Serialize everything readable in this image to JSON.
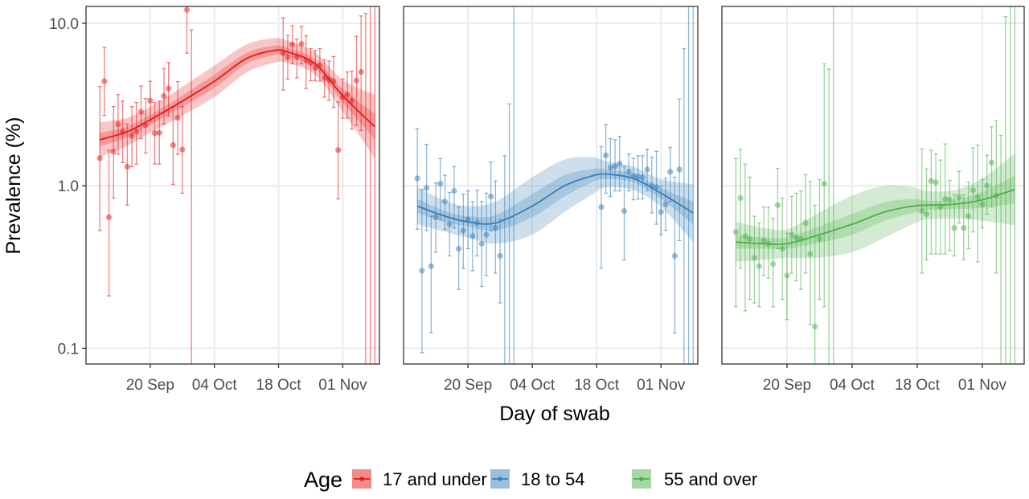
{
  "chart_data": {
    "type": "line",
    "facets": 3,
    "xlabel": "Day of swab",
    "ylabel": "Prevalence (%)",
    "yscale": "log10",
    "ylim": [
      0.08,
      12.7
    ],
    "yticks": [
      {
        "value": 0.1,
        "label": "0.1"
      },
      {
        "value": 1,
        "label": "1.0"
      },
      {
        "value": 10,
        "label": "10.0"
      }
    ],
    "xticks": [
      {
        "date": "09-20",
        "label": "20 Sep"
      },
      {
        "date": "10-04",
        "label": "04 Oct"
      },
      {
        "date": "10-18",
        "label": "18 Oct"
      },
      {
        "date": "11-01",
        "label": "01 Nov"
      }
    ],
    "grid": true,
    "legend": {
      "title": "Age",
      "position": "bottom"
    },
    "series": [
      {
        "name": "17 and under",
        "color": "#E41A1C",
        "xlim": [
          "09-06",
          "11-09"
        ],
        "dates": [
          "09-09",
          "09-10",
          "09-11",
          "09-12",
          "09-13",
          "09-14",
          "09-15",
          "09-16",
          "09-17",
          "09-18",
          "09-19",
          "09-20",
          "09-21",
          "09-22",
          "09-23",
          "09-24",
          "09-25",
          "09-26",
          "09-27",
          "09-28",
          "09-29",
          "10-19",
          "10-20",
          "10-21",
          "10-22",
          "10-23",
          "10-24",
          "10-25",
          "10-26",
          "10-27",
          "10-28",
          "10-29",
          "10-30",
          "10-31",
          "11-01",
          "11-02",
          "11-03",
          "11-04",
          "11-05",
          "11-06",
          "11-07",
          "11-08"
        ],
        "values": [
          1.48,
          4.4,
          0.64,
          1.62,
          2.39,
          2.15,
          1.31,
          2.03,
          2.15,
          2.85,
          2.36,
          3.34,
          2.11,
          2.12,
          3.57,
          3.97,
          1.78,
          2.62,
          1.67,
          12.1,
          0,
          6.55,
          6.18,
          7.41,
          6.18,
          7.47,
          5.91,
          5.69,
          5.32,
          5.52,
          4.61,
          4.49,
          4.4,
          1.66,
          3.51,
          3.64,
          3.35,
          4.45,
          5.02,
          0,
          0,
          0
        ],
        "lower": [
          0.53,
          2.71,
          0.21,
          0.84,
          1.56,
          1.39,
          0.76,
          1.31,
          1.36,
          1.95,
          1.59,
          2.5,
          1.36,
          1.36,
          2.4,
          2.69,
          1.02,
          1.56,
          0.9,
          6.55,
          0,
          3.88,
          4.54,
          5.63,
          4.61,
          5.63,
          3.97,
          4.43,
          4.43,
          4.4,
          3.51,
          3.35,
          3.04,
          0.83,
          2.61,
          2.61,
          2.23,
          2.36,
          2.19,
          0,
          0,
          0
        ],
        "upper": [
          4.08,
          7.1,
          1.65,
          3.07,
          3.64,
          3.32,
          2.4,
          3.07,
          3.25,
          4.11,
          3.44,
          4.4,
          3.25,
          3.32,
          5.26,
          5.74,
          3.07,
          4.37,
          3.07,
          20,
          9.1,
          10.8,
          8.43,
          9.67,
          8.0,
          9.55,
          8.37,
          6.98,
          6.8,
          6.98,
          5.96,
          5.85,
          6.24,
          3.28,
          4.54,
          5.02,
          5.08,
          8.31,
          11.1,
          11.5,
          20,
          20
        ],
        "fit": {
          "dates": [
            "09-09",
            "09-15",
            "09-20",
            "09-26",
            "10-04",
            "10-11",
            "10-17",
            "10-20",
            "10-26",
            "11-01",
            "11-08"
          ],
          "estimate": [
            1.92,
            2.15,
            2.55,
            3.19,
            4.4,
            6.07,
            6.8,
            6.66,
            5.63,
            3.58,
            2.31
          ],
          "ci95_lower": [
            1.5,
            1.76,
            2.13,
            2.61,
            3.52,
            4.98,
            5.71,
            5.69,
            4.81,
            2.86,
            1.47
          ],
          "ci95_upper": [
            2.46,
            2.62,
            3.06,
            3.89,
            5.5,
            7.41,
            8.09,
            7.79,
            6.59,
            4.48,
            3.63
          ],
          "ci50_lower": [
            1.75,
            1.99,
            2.38,
            2.95,
            4.0,
            5.62,
            6.36,
            6.28,
            5.31,
            3.25,
            1.93
          ],
          "ci50_upper": [
            2.11,
            2.32,
            2.73,
            3.45,
            4.84,
            6.56,
            7.28,
            7.06,
            5.97,
            3.94,
            2.77
          ]
        }
      },
      {
        "name": "18 to 54",
        "color": "#377EB8",
        "xlim": [
          "09-06",
          "11-09"
        ],
        "dates": [
          "09-09",
          "09-10",
          "09-11",
          "09-12",
          "09-13",
          "09-14",
          "09-15",
          "09-16",
          "09-17",
          "09-18",
          "09-19",
          "09-20",
          "09-21",
          "09-22",
          "09-23",
          "09-24",
          "09-25",
          "09-26",
          "09-27",
          "09-28",
          "09-29",
          "09-30",
          "10-19",
          "10-20",
          "10-21",
          "10-22",
          "10-23",
          "10-24",
          "10-25",
          "10-26",
          "10-27",
          "10-28",
          "10-29",
          "10-30",
          "10-31",
          "11-01",
          "11-02",
          "11-03",
          "11-04",
          "11-05",
          "11-06",
          "11-07",
          "11-08"
        ],
        "values": [
          1.11,
          0.3,
          0.97,
          0.32,
          0.64,
          1.03,
          0.8,
          0.58,
          0.93,
          0.41,
          0.53,
          0.62,
          0.49,
          0.59,
          0.44,
          0.5,
          0.86,
          0.55,
          0.37,
          0,
          0,
          0,
          0.74,
          1.54,
          1.29,
          1.32,
          1.37,
          0.7,
          1.22,
          1.15,
          1.14,
          1.13,
          1.26,
          1.0,
          0.98,
          0.69,
          0.77,
          1.22,
          0.37,
          1.26,
          0,
          0,
          0
        ],
        "lower": [
          0.54,
          0.094,
          0.53,
          0.125,
          0.39,
          0.62,
          0.54,
          0.37,
          0.55,
          0.23,
          0.31,
          0.41,
          0.3,
          0.37,
          0.24,
          0.28,
          0.53,
          0.29,
          0.19,
          0,
          0,
          0,
          0.31,
          0.9,
          0.86,
          0.93,
          0.93,
          0.35,
          0.93,
          0.82,
          0.83,
          0.83,
          0.93,
          0.68,
          0.58,
          0.5,
          0.53,
          0.8,
          0.124,
          0.46,
          0,
          0,
          0
        ],
        "upper": [
          2.25,
          0.95,
          1.8,
          0.65,
          1.04,
          1.47,
          1.16,
          0.91,
          1.31,
          0.74,
          0.89,
          0.93,
          0.8,
          0.94,
          0.8,
          0.9,
          1.4,
          1.07,
          0.62,
          1.53,
          3.19,
          20,
          1.74,
          2.39,
          1.95,
          1.92,
          2.01,
          1.31,
          1.57,
          1.48,
          1.53,
          1.53,
          1.68,
          1.5,
          1.63,
          1.0,
          1.11,
          1.72,
          1.13,
          3.42,
          6.98,
          20,
          20
        ],
        "fit": {
          "dates": [
            "09-09",
            "09-15",
            "09-20",
            "09-26",
            "10-04",
            "10-11",
            "10-17",
            "10-20",
            "10-26",
            "11-01",
            "11-08"
          ],
          "estimate": [
            0.75,
            0.65,
            0.6,
            0.59,
            0.75,
            1.0,
            1.15,
            1.18,
            1.11,
            0.9,
            0.68
          ],
          "ci95_lower": [
            0.58,
            0.52,
            0.48,
            0.44,
            0.5,
            0.69,
            0.88,
            0.98,
            0.94,
            0.74,
            0.45
          ],
          "ci95_upper": [
            0.98,
            0.81,
            0.75,
            0.8,
            1.13,
            1.45,
            1.5,
            1.42,
            1.31,
            1.1,
            1.02
          ],
          "ci50_lower": [
            0.68,
            0.6,
            0.56,
            0.53,
            0.64,
            0.86,
            1.05,
            1.1,
            1.05,
            0.83,
            0.58
          ],
          "ci50_upper": [
            0.83,
            0.7,
            0.65,
            0.66,
            0.89,
            1.16,
            1.27,
            1.26,
            1.18,
            0.97,
            0.8
          ]
        }
      },
      {
        "name": "55 and over",
        "color": "#4DAF4A",
        "xlim": [
          "09-06",
          "11-10"
        ],
        "dates": [
          "09-09",
          "09-10",
          "09-11",
          "09-12",
          "09-13",
          "09-14",
          "09-15",
          "09-16",
          "09-17",
          "09-18",
          "09-19",
          "09-20",
          "09-21",
          "09-22",
          "09-23",
          "09-24",
          "09-25",
          "09-26",
          "09-27",
          "09-28",
          "09-29",
          "09-30",
          "10-19",
          "10-20",
          "10-21",
          "10-22",
          "10-23",
          "10-24",
          "10-25",
          "10-26",
          "10-27",
          "10-28",
          "10-29",
          "10-30",
          "10-31",
          "11-01",
          "11-02",
          "11-03",
          "11-04",
          "11-05",
          "11-06",
          "11-07",
          "11-08"
        ],
        "values": [
          0.52,
          0.84,
          0.49,
          0.47,
          0.36,
          0.32,
          0.46,
          0.44,
          0.33,
          0.76,
          0.41,
          0.28,
          0.5,
          0.48,
          0.47,
          0.59,
          0.38,
          0.136,
          0.47,
          1.03,
          0,
          0,
          0.7,
          0.67,
          1.07,
          1.05,
          0.74,
          0.83,
          0.82,
          0.55,
          0.85,
          0.55,
          0.65,
          0.94,
          0.85,
          0.77,
          1.0,
          1.39,
          0.87,
          0,
          0,
          0,
          0
        ],
        "lower": [
          0.18,
          0.31,
          0.17,
          0.2,
          0.19,
          0.18,
          0.28,
          0.27,
          0.18,
          0.41,
          0.2,
          0.15,
          0.29,
          0.26,
          0.23,
          0.29,
          0.14,
          0,
          0.2,
          0.18,
          0,
          0,
          0.29,
          0.35,
          0.38,
          0.38,
          0.38,
          0.38,
          0.4,
          0.37,
          0.59,
          0.35,
          0.41,
          0.52,
          0.34,
          0.55,
          0.67,
          0.74,
          0.29,
          0,
          0,
          0,
          0
        ],
        "upper": [
          1.47,
          1.68,
          1.36,
          1.13,
          0.65,
          0.59,
          0.74,
          0.74,
          0.63,
          1.28,
          0.84,
          0.51,
          0.86,
          0.9,
          0.93,
          1.17,
          1.06,
          0.76,
          1.09,
          5.63,
          5.22,
          20,
          1.69,
          1.27,
          1.66,
          1.57,
          1.44,
          1.81,
          1.08,
          0.88,
          1.23,
          0.88,
          1.05,
          1.71,
          1.78,
          1.09,
          1.54,
          2.31,
          2.52,
          2.04,
          11.0,
          20,
          20
        ],
        "fit": {
          "dates": [
            "09-09",
            "09-15",
            "09-20",
            "09-26",
            "10-04",
            "10-11",
            "10-17",
            "10-20",
            "10-26",
            "11-01",
            "11-08"
          ],
          "estimate": [
            0.45,
            0.44,
            0.44,
            0.49,
            0.58,
            0.69,
            0.75,
            0.76,
            0.77,
            0.82,
            0.95
          ],
          "ci95_lower": [
            0.34,
            0.35,
            0.36,
            0.36,
            0.39,
            0.48,
            0.58,
            0.62,
            0.63,
            0.61,
            0.57
          ],
          "ci95_upper": [
            0.6,
            0.55,
            0.54,
            0.66,
            0.87,
            1.0,
            0.98,
            0.93,
            0.94,
            1.11,
            1.59
          ],
          "ci50_lower": [
            0.41,
            0.41,
            0.41,
            0.44,
            0.5,
            0.61,
            0.68,
            0.71,
            0.72,
            0.73,
            0.78
          ],
          "ci50_upper": [
            0.5,
            0.48,
            0.48,
            0.55,
            0.67,
            0.79,
            0.83,
            0.81,
            0.82,
            0.92,
            1.16
          ]
        }
      }
    ]
  }
}
